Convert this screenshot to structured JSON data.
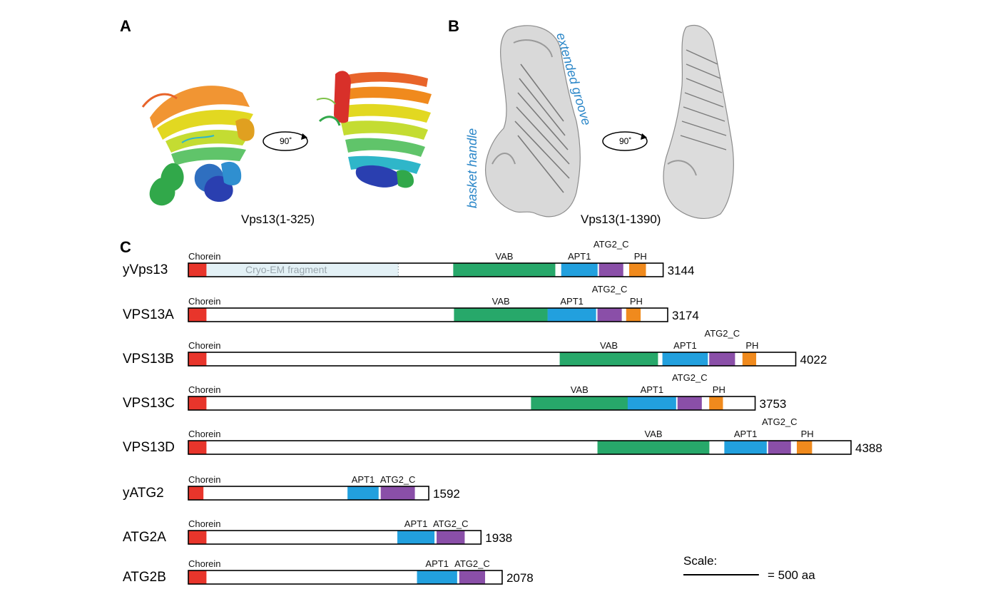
{
  "panels": {
    "a": {
      "letter": "A",
      "caption": "Vps13(1-325)",
      "rotation": "90˚"
    },
    "b": {
      "letter": "B",
      "caption": "Vps13(1-1390)",
      "rotation": "90˚",
      "label_groove": "extended groove",
      "label_handle": "basket handle"
    },
    "c": {
      "letter": "C",
      "cryo_fragment_label": "Cryo-EM fragment",
      "scale_title": "Scale:",
      "scale_value": "= 500 aa"
    }
  },
  "colors": {
    "chorein": "#e8352b",
    "vab": "#27a86a",
    "apt1": "#22a0de",
    "atg2_c": "#8a4fa8",
    "ph": "#f08a1d",
    "cryo_fragment": "#e3f1f6",
    "blue_text": "#2a86c8"
  },
  "proteins": [
    {
      "name": "yVps13",
      "length": 3144,
      "length_label": "3144",
      "cryo_fragment": true,
      "domains": [
        {
          "key": "chorein",
          "label": "Chorein",
          "start": 1,
          "end": 120
        },
        {
          "key": "vab",
          "label": "VAB",
          "start": 1755,
          "end": 2430
        },
        {
          "key": "apt1",
          "label": "APT1",
          "start": 2470,
          "end": 2710
        },
        {
          "key": "atg2_c",
          "label": "ATG2_C",
          "start": 2720,
          "end": 2880
        },
        {
          "key": "ph",
          "label": "PH",
          "start": 2920,
          "end": 3030
        }
      ]
    },
    {
      "name": "VPS13A",
      "length": 3174,
      "length_label": "3174",
      "domains": [
        {
          "key": "chorein",
          "label": "Chorein",
          "start": 1,
          "end": 120
        },
        {
          "key": "vab",
          "label": "VAB",
          "start": 1760,
          "end": 2380
        },
        {
          "key": "apt1",
          "label": "APT1",
          "start": 2380,
          "end": 2700
        },
        {
          "key": "atg2_c",
          "label": "ATG2_C",
          "start": 2710,
          "end": 2870
        },
        {
          "key": "ph",
          "label": "PH",
          "start": 2900,
          "end": 2995
        }
      ]
    },
    {
      "name": "VPS13B",
      "length": 4022,
      "length_label": "4022",
      "domains": [
        {
          "key": "chorein",
          "label": "Chorein",
          "start": 1,
          "end": 120
        },
        {
          "key": "vab",
          "label": "VAB",
          "start": 2460,
          "end": 3110
        },
        {
          "key": "apt1",
          "label": "APT1",
          "start": 3140,
          "end": 3440
        },
        {
          "key": "atg2_c",
          "label": "ATG2_C",
          "start": 3450,
          "end": 3620
        },
        {
          "key": "ph",
          "label": "PH",
          "start": 3670,
          "end": 3760
        }
      ]
    },
    {
      "name": "VPS13C",
      "length": 3753,
      "length_label": "3753",
      "domains": [
        {
          "key": "chorein",
          "label": "Chorein",
          "start": 1,
          "end": 120
        },
        {
          "key": "vab",
          "label": "VAB",
          "start": 2270,
          "end": 2910
        },
        {
          "key": "apt1",
          "label": "APT1",
          "start": 2910,
          "end": 3230
        },
        {
          "key": "atg2_c",
          "label": "ATG2_C",
          "start": 3240,
          "end": 3400
        },
        {
          "key": "ph",
          "label": "PH",
          "start": 3450,
          "end": 3540
        }
      ]
    },
    {
      "name": "VPS13D",
      "length": 4388,
      "length_label": "4388",
      "domains": [
        {
          "key": "chorein",
          "label": "Chorein",
          "start": 1,
          "end": 120
        },
        {
          "key": "vab",
          "label": "VAB",
          "start": 2710,
          "end": 3450
        },
        {
          "key": "apt1",
          "label": "APT1",
          "start": 3550,
          "end": 3830
        },
        {
          "key": "atg2_c",
          "label": "ATG2_C",
          "start": 3840,
          "end": 3990
        },
        {
          "key": "ph",
          "label": "PH",
          "start": 4030,
          "end": 4130
        }
      ]
    },
    {
      "name": "yATG2",
      "length": 1592,
      "length_label": "1592",
      "domains": [
        {
          "key": "chorein",
          "label": "Chorein",
          "start": 1,
          "end": 100
        },
        {
          "key": "apt1",
          "label": "APT1",
          "start": 1055,
          "end": 1260
        },
        {
          "key": "atg2_c",
          "label": "ATG2_C",
          "start": 1275,
          "end": 1500
        }
      ]
    },
    {
      "name": "ATG2A",
      "length": 1938,
      "length_label": "1938",
      "domains": [
        {
          "key": "chorein",
          "label": "Chorein",
          "start": 1,
          "end": 120
        },
        {
          "key": "apt1",
          "label": "APT1",
          "start": 1385,
          "end": 1630
        },
        {
          "key": "atg2_c",
          "label": "ATG2_C",
          "start": 1645,
          "end": 1830
        }
      ]
    },
    {
      "name": "ATG2B",
      "length": 2078,
      "length_label": "2078",
      "domains": [
        {
          "key": "chorein",
          "label": "Chorein",
          "start": 1,
          "end": 120
        },
        {
          "key": "apt1",
          "label": "APT1",
          "start": 1515,
          "end": 1780
        },
        {
          "key": "atg2_c",
          "label": "ATG2_C",
          "start": 1795,
          "end": 1965
        }
      ]
    }
  ],
  "cryo_fragment_range": {
    "start": 1,
    "end": 1390
  }
}
